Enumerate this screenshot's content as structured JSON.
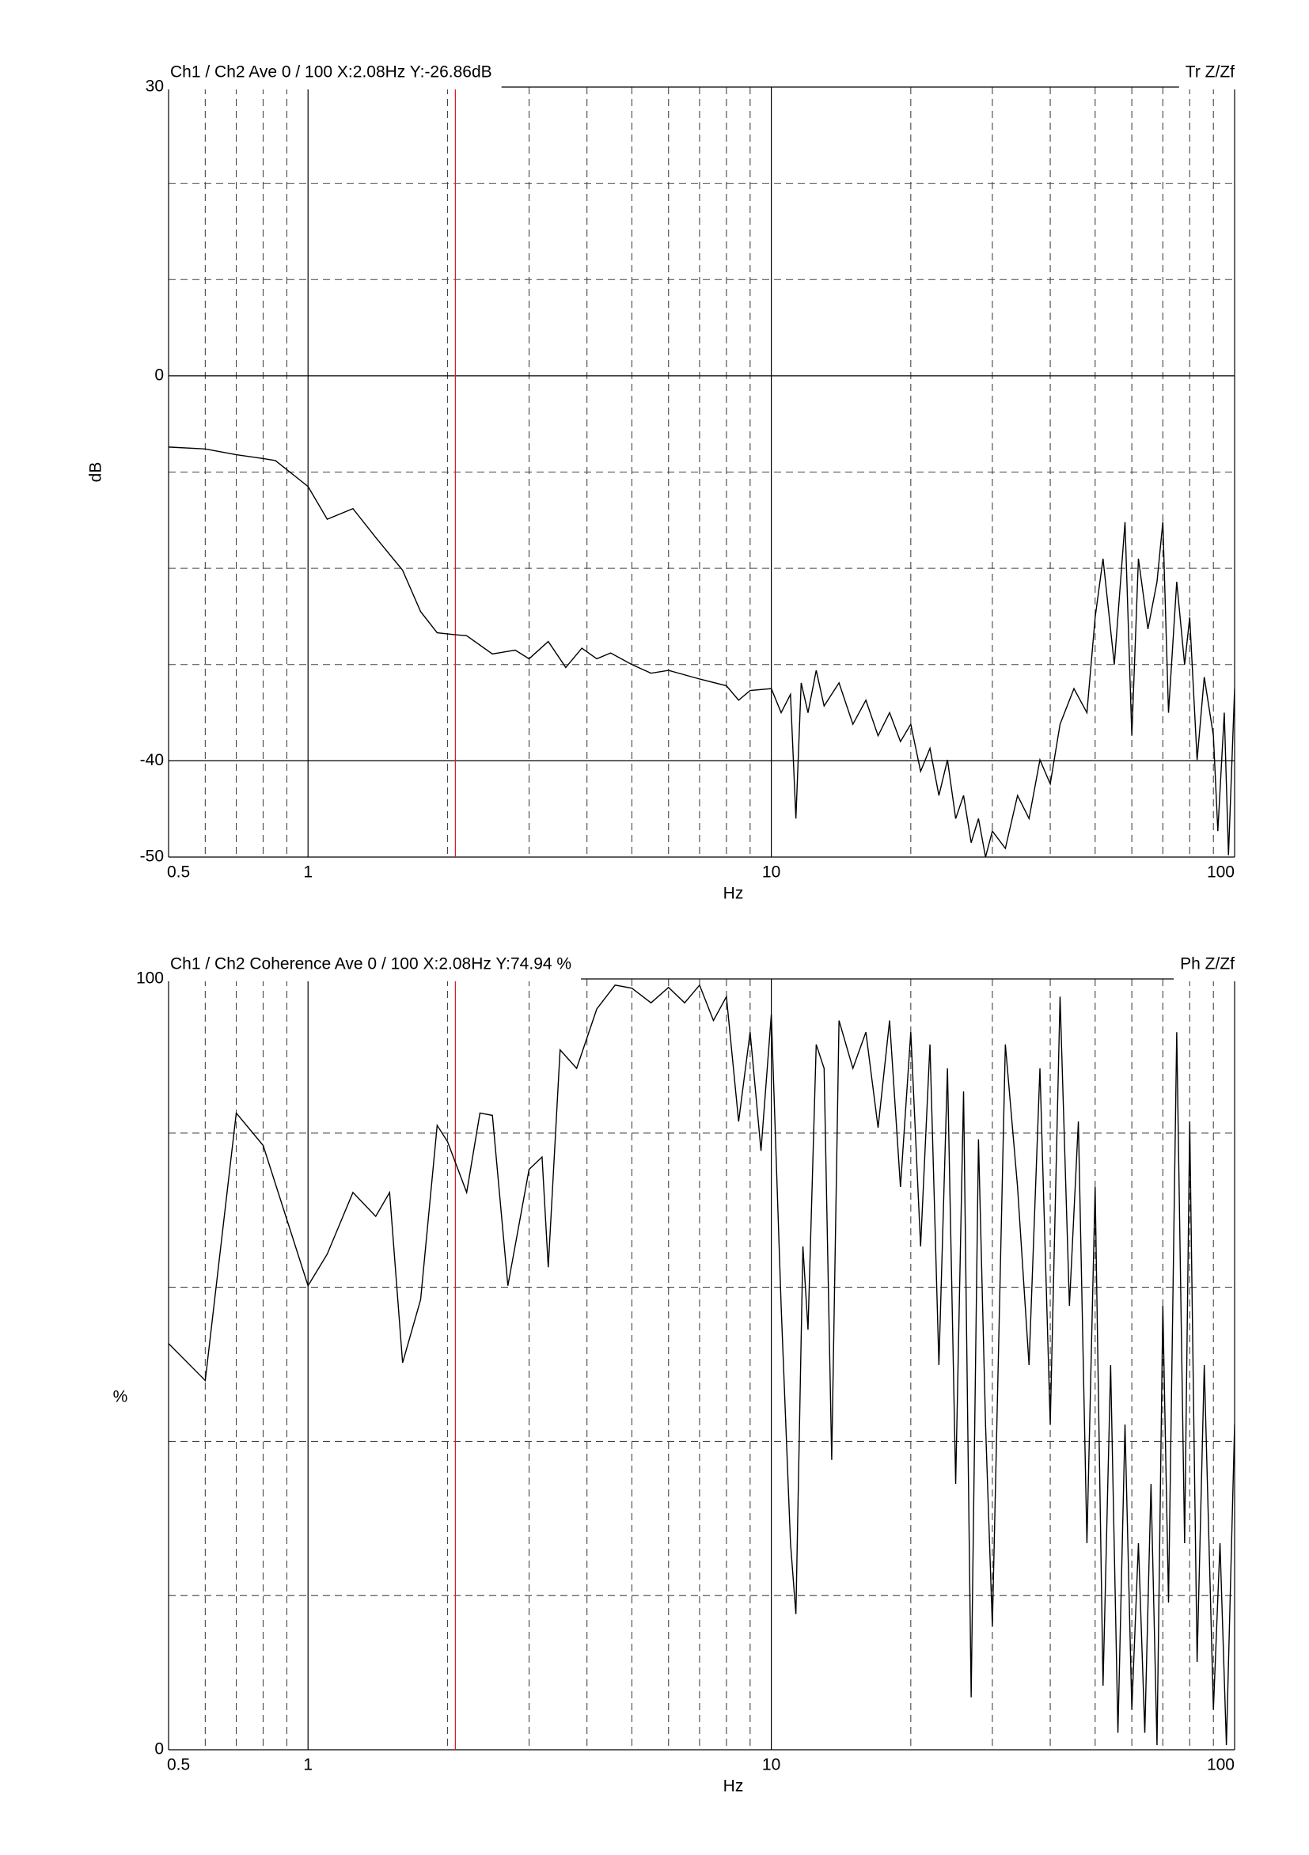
{
  "chart_data": [
    {
      "type": "line",
      "title": "Ch1 / Ch2  Ave 0 / 100  X:2.08Hz  Y:-26.86dB",
      "title_right": "Tr Z/Zf",
      "x_label": "Hz",
      "y_label": "dB",
      "log_x": true,
      "xlim": [
        0.5,
        100
      ],
      "xticks": [
        0.5,
        1,
        10,
        100
      ],
      "xminor": [
        0.6,
        0.7,
        0.8,
        0.9,
        2,
        3,
        4,
        5,
        6,
        7,
        8,
        9,
        20,
        30,
        40,
        50,
        60,
        70,
        80,
        90
      ],
      "ylim": [
        -50,
        30
      ],
      "yticks": [
        -50,
        -40,
        0,
        30
      ],
      "yminor": [
        -30,
        -20,
        -10,
        10,
        20
      ],
      "cursor_x": 2.08,
      "cursor_color": "#d62020",
      "x": [
        0.5,
        0.6,
        0.7,
        0.8,
        0.85,
        1.0,
        1.1,
        1.25,
        1.4,
        1.6,
        1.75,
        1.9,
        2.08,
        2.2,
        2.5,
        2.8,
        3.0,
        3.3,
        3.6,
        3.9,
        4.2,
        4.5,
        5,
        5.5,
        6,
        7,
        8,
        8.5,
        9,
        10,
        10.5,
        11,
        11.3,
        11.6,
        12,
        12.5,
        13,
        14,
        15,
        16,
        17,
        18,
        19,
        20,
        21,
        22,
        23,
        24,
        25,
        26,
        27,
        28,
        29,
        30,
        32,
        34,
        36,
        38,
        40,
        42,
        45,
        48,
        50,
        52,
        55,
        58,
        60,
        62,
        65,
        68,
        70,
        72,
        75,
        78,
        80,
        83,
        86,
        90,
        92,
        95,
        97,
        100
      ],
      "color": "#000000",
      "values": [
        -7.4,
        -7.6,
        -8.2,
        -8.6,
        -8.8,
        -11.5,
        -14.9,
        -13.8,
        -16.8,
        -20.2,
        -24.5,
        -26.7,
        -26.9,
        -27,
        -28.9,
        -28.5,
        -29.4,
        -27.6,
        -30.3,
        -28.3,
        -29.4,
        -28.8,
        -30,
        -30.9,
        -30.6,
        -31.5,
        -32.2,
        -33.7,
        -32.7,
        -32.5,
        -35,
        -33.1,
        -46,
        -31.9,
        -35,
        -30.6,
        -34.3,
        -31.9,
        -36.2,
        -33.7,
        -37.4,
        -35,
        -38,
        -36.2,
        -41.1,
        -38.7,
        -43.6,
        -39.9,
        -46,
        -43.6,
        -48.5,
        -46,
        -50,
        -47.3,
        -49.1,
        -43.6,
        -46,
        -39.9,
        -42.4,
        -36.2,
        -32.5,
        -35,
        -25.1,
        -19,
        -30,
        -15.2,
        -37.4,
        -19,
        -26.3,
        -21.4,
        -15.2,
        -35,
        -21.4,
        -30,
        -25.1,
        -39.9,
        -31.3,
        -37.4,
        -47.3,
        -35,
        -49.8,
        -32.5
      ]
    },
    {
      "type": "line",
      "title": "Ch1 / Ch2  Coherence Ave 0 / 100  X:2.08Hz  Y:74.94 %",
      "title_right": "Ph Z/Zf",
      "x_label": "Hz",
      "y_label": "%",
      "log_x": true,
      "xlim": [
        0.5,
        100
      ],
      "xticks": [
        0.5,
        1,
        10,
        100
      ],
      "xminor": [
        0.6,
        0.7,
        0.8,
        0.9,
        2,
        3,
        4,
        5,
        6,
        7,
        8,
        9,
        20,
        30,
        40,
        50,
        60,
        70,
        80,
        90
      ],
      "ylim": [
        0,
        100
      ],
      "yticks": [
        0,
        100
      ],
      "yminor": [
        20,
        40,
        60,
        80
      ],
      "cursor_x": 2.08,
      "cursor_color": "#d62020",
      "x": [
        0.5,
        0.6,
        0.7,
        0.8,
        1.0,
        1.1,
        1.25,
        1.4,
        1.5,
        1.6,
        1.75,
        1.9,
        2.0,
        2.2,
        2.35,
        2.5,
        2.7,
        3.0,
        3.2,
        3.3,
        3.5,
        3.8,
        4.2,
        4.6,
        5,
        5.5,
        6,
        6.5,
        7,
        7.5,
        8,
        8.5,
        9,
        9.5,
        10,
        10.5,
        11,
        11.3,
        11.7,
        12,
        12.5,
        13,
        13.5,
        14,
        15,
        16,
        17,
        18,
        19,
        20,
        21,
        22,
        23,
        24,
        25,
        26,
        27,
        28,
        29,
        30,
        32,
        34,
        36,
        38,
        40,
        42,
        44,
        46,
        48,
        50,
        52,
        54,
        56,
        58,
        60,
        62,
        64,
        66,
        68,
        70,
        72,
        75,
        78,
        80,
        83,
        86,
        90,
        93,
        96,
        100
      ],
      "color": "#000000",
      "values": [
        52.7,
        47.9,
        82.6,
        78.4,
        60.2,
        64.3,
        72.3,
        69.2,
        72.3,
        50.2,
        58.4,
        81,
        78.9,
        72.3,
        82.6,
        82.3,
        60.2,
        75.3,
        76.9,
        62.6,
        90.8,
        88.4,
        96.1,
        99.2,
        98.8,
        96.9,
        98.9,
        96.9,
        99.2,
        94.6,
        97.7,
        81.5,
        93.1,
        77.7,
        95.4,
        57.6,
        26.8,
        17.6,
        65.3,
        54.5,
        91.5,
        88.4,
        37.6,
        94.6,
        88.4,
        93.1,
        80.7,
        94.6,
        73,
        93.1,
        65.3,
        91.5,
        49.9,
        88.4,
        34.5,
        85.4,
        6.8,
        79.2,
        42.2,
        16,
        91.5,
        73,
        49.9,
        88.4,
        42.2,
        97.7,
        57.6,
        81.5,
        26.8,
        73,
        8.3,
        49.9,
        2.2,
        42.2,
        5.2,
        26.8,
        2.2,
        34.5,
        0.6,
        57.6,
        19.1,
        93.1,
        26.8,
        81.5,
        11.4,
        49.9,
        5.2,
        26.8,
        0.6,
        42.2
      ]
    }
  ]
}
